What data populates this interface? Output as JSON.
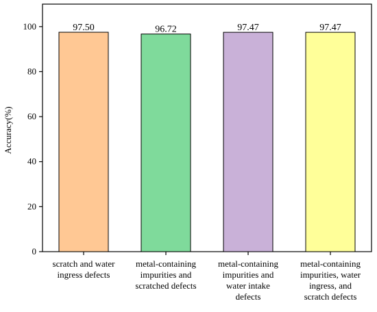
{
  "chart_data": {
    "type": "bar",
    "title": "",
    "xlabel": "",
    "ylabel": "Accuracy(%)",
    "ylim": [
      0,
      110
    ],
    "yticks": [
      0,
      20,
      40,
      60,
      80,
      100
    ],
    "grid": false,
    "categories": [
      [
        "scratch and water",
        "ingress defects"
      ],
      [
        "metal-containing",
        "impurities and",
        "scratched defects"
      ],
      [
        "metal-containing",
        "impurities and",
        "water intake",
        "defects"
      ],
      [
        "metal-containing",
        "impurities, water",
        "ingress, and",
        "scratch defects"
      ]
    ],
    "values": [
      97.5,
      96.72,
      97.47,
      97.47
    ],
    "value_labels": [
      "97.50",
      "96.72",
      "97.47",
      "97.47"
    ],
    "colors": [
      "#FFC894",
      "#7FDA9B",
      "#C9B1D8",
      "#FFFF99"
    ],
    "edge_color": "#000000"
  }
}
